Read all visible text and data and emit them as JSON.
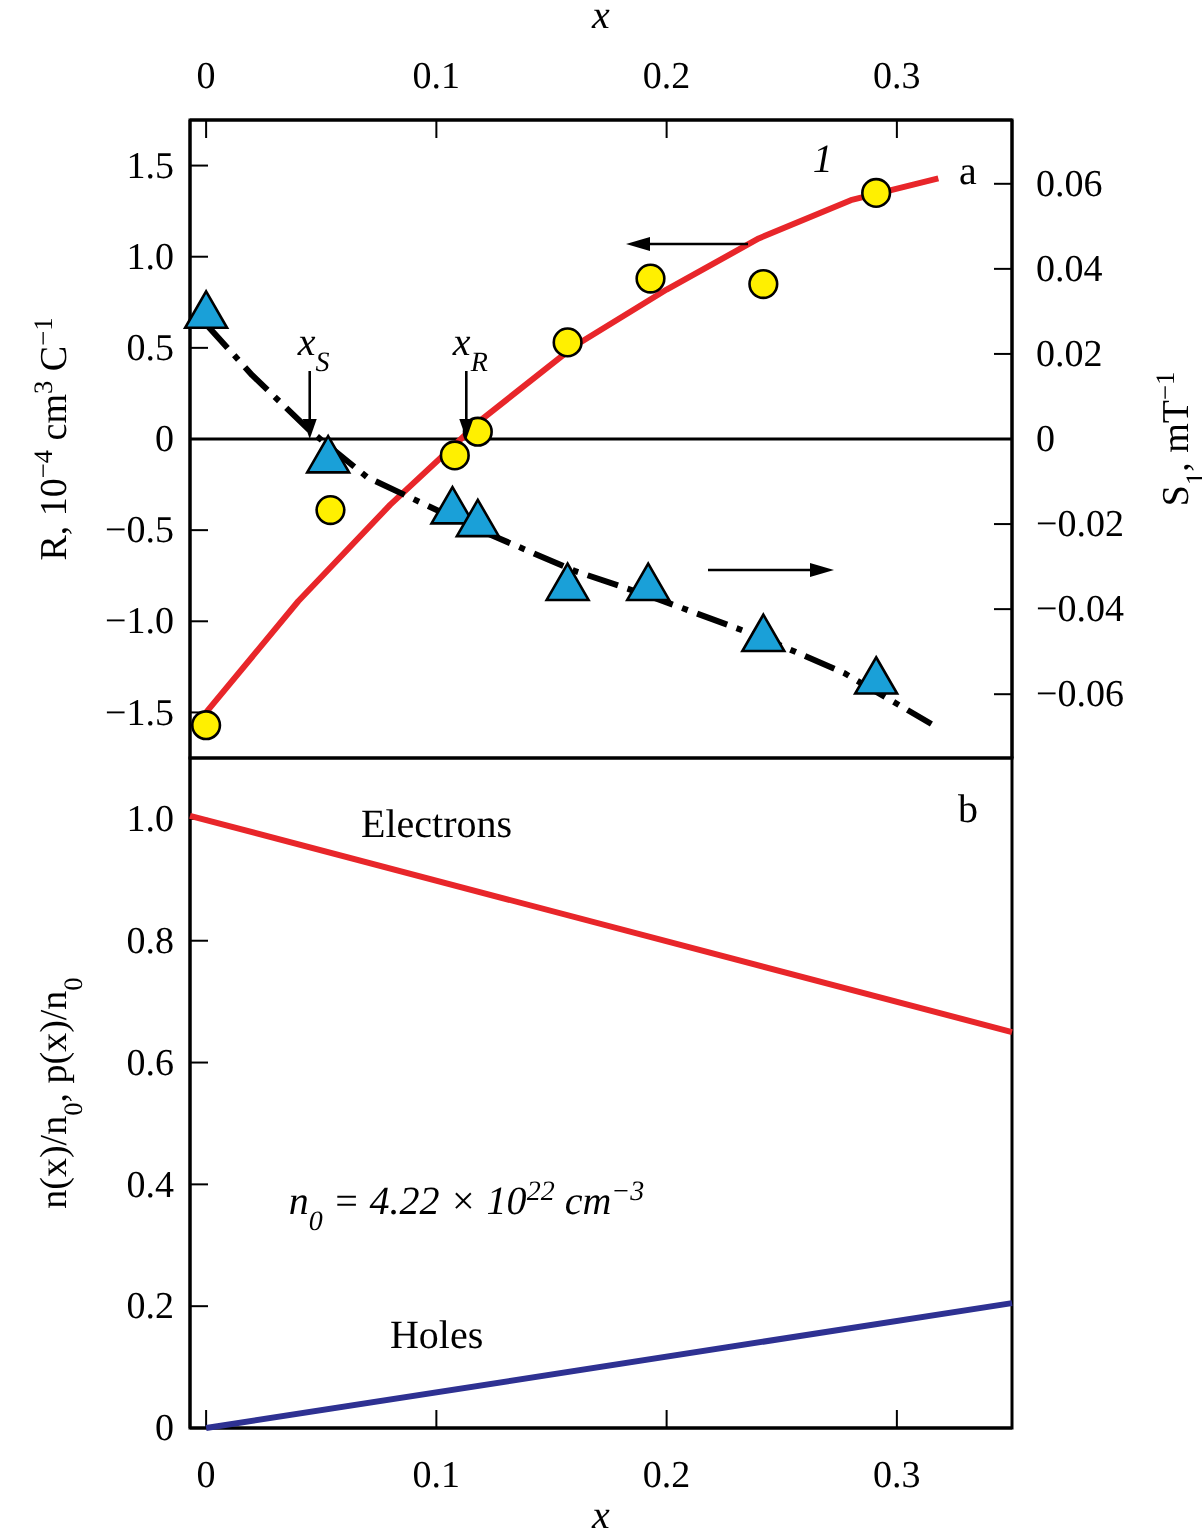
{
  "chart_data": [
    {
      "type": "scatter",
      "xlabel": "x",
      "ylabel": "R, 10$^{−4}$ cm$^{3}$ C$^{−1}$",
      "y2label": "S$_{1}$, mT$^{−1}$",
      "xlim": [
        -0.007,
        0.35
      ],
      "xticks": [
        0,
        0.1,
        0.2,
        0.3
      ],
      "ylim": [
        -1.75,
        1.75
      ],
      "yticks": [
        {
          "value": -1.5,
          "label": "−1.5"
        },
        {
          "value": -1,
          "label": "−1.0"
        },
        {
          "value": -0.5,
          "label": "−0.5"
        },
        0,
        0.5,
        {
          "value": 1,
          "label": "1.0"
        },
        1.5
      ],
      "y2lim": [
        -0.075,
        0.075
      ],
      "y2ticks": [
        {
          "value": -0.06,
          "label": "−0.06"
        },
        {
          "value": -0.04,
          "label": "−0.04"
        },
        {
          "value": -0.02,
          "label": "−0.02"
        },
        0,
        0.02,
        0.04,
        0.06
      ],
      "ref_lines": [
        {
          "axis": "y",
          "value": 0,
          "color": "#000000",
          "line_style": "solid"
        }
      ],
      "annotations": [
        "a",
        {
          "text": "x$_{S}$",
          "x": 0.045,
          "y": 0
        },
        {
          "text": "x$_{R}$",
          "x": 0.113,
          "y": 0
        }
      ],
      "series": [
        {
          "type": "line",
          "name": "1",
          "color": "#e8262a",
          "marker": "none",
          "line_style": "solid",
          "x": [
            0,
            0.04,
            0.08,
            0.12,
            0.16,
            0.2,
            0.24,
            0.28,
            0.318
          ],
          "values": [
            -1.5,
            -0.89,
            -0.36,
            0.11,
            0.51,
            0.82,
            1.1,
            1.31,
            1.43
          ]
        },
        {
          "type": "line",
          "color": "#000000",
          "marker": "none",
          "line_style": "dashed",
          "axis": "y2",
          "x": [
            0,
            0.02,
            0.045,
            0.07,
            0.117,
            0.16,
            0.193,
            0.243,
            0.277,
            0.315
          ],
          "values": [
            0.027,
            0.015,
            0.002,
            -0.009,
            -0.021,
            -0.031,
            -0.037,
            -0.047,
            -0.055,
            -0.067
          ]
        },
        {
          "color": "#fff000",
          "marker": "circle",
          "x": [
            0,
            0.054,
            0.108,
            0.118,
            0.157,
            0.193,
            0.242,
            0.291
          ],
          "values": [
            -1.57,
            -0.39,
            -0.09,
            0.04,
            0.53,
            0.88,
            0.85,
            1.35
          ]
        },
        {
          "color": "#1aa0d8",
          "marker": "triangle",
          "axis": "y2",
          "x": [
            0,
            0.053,
            0.107,
            0.118,
            0.157,
            0.192,
            0.242,
            0.291
          ],
          "values": [
            0.029,
            -0.005,
            -0.017,
            -0.02,
            -0.035,
            -0.035,
            -0.047,
            -0.057
          ]
        }
      ]
    },
    {
      "type": "line",
      "xlabel": "x",
      "ylabel": "n(x)/n$_{0}$, p(x)/n$_{0}$",
      "xlim": [
        -0.007,
        0.35
      ],
      "xticks": [
        0,
        0.1,
        0.2,
        0.3
      ],
      "ylim": [
        0,
        1.1
      ],
      "yticks": [
        0,
        0.2,
        0.4,
        0.6,
        0.8,
        {
          "value": 1,
          "label": "1.0"
        }
      ],
      "annotations": [
        "b",
        "n$_{0}$ = 4.22 × 10$^{22}$ cm$^{−3}$"
      ],
      "series": [
        {
          "name": "Electrons",
          "color": "#e8262a",
          "marker": "none",
          "line_style": "solid",
          "x": [
            -0.007,
            0.35
          ],
          "values": [
            1.005,
            0.65
          ]
        },
        {
          "name": "Holes",
          "color": "#2e3192",
          "marker": "none",
          "line_style": "solid",
          "x": [
            0,
            0.35
          ],
          "values": [
            0,
            0.205
          ]
        }
      ]
    }
  ]
}
